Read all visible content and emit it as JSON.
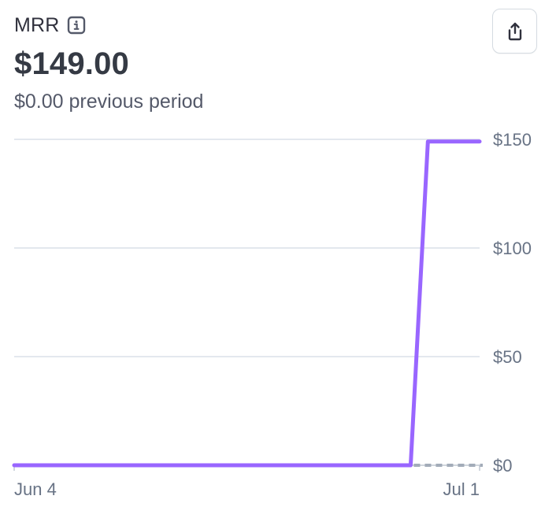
{
  "metric": {
    "label": "MRR",
    "value": "$149.00",
    "previous": "$0.00 previous period"
  },
  "icons": {
    "info": "info-icon",
    "share": "share-icon"
  },
  "colors": {
    "current": "#9966ff",
    "previous": "#a3acb9",
    "grid": "#e3e8ee"
  },
  "chart_data": {
    "type": "line",
    "title": "",
    "xlabel": "",
    "ylabel": "",
    "x_labels": [
      "Jun 4",
      "Jul 1"
    ],
    "ylim": [
      0,
      150
    ],
    "yticks": [
      0,
      50,
      100,
      150
    ],
    "ytick_labels": [
      "$0",
      "$50",
      "$100",
      "$150"
    ],
    "grid": true,
    "series": [
      {
        "role": "current",
        "x": [
          "Jun 4",
          "Jun 27",
          "Jun 28",
          "Jul 1"
        ],
        "values": [
          0,
          0,
          149,
          149
        ]
      },
      {
        "role": "previous",
        "x": [
          "Jun 27",
          "Jul 1"
        ],
        "values": [
          0,
          0
        ],
        "dashed": true
      }
    ]
  }
}
